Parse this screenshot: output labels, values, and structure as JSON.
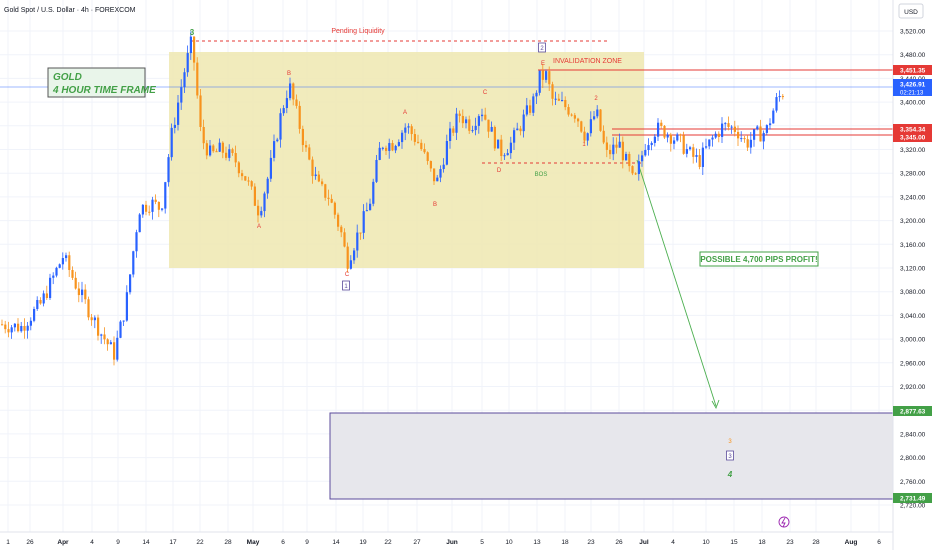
{
  "header": {
    "symbol_title": "Gold Spot / U.S. Dollar · 4h · FOREXCOM"
  },
  "axis": {
    "currency": "USD"
  },
  "colors": {
    "up": "#2962ff",
    "down": "#f7931e",
    "zone": "#efe8b0",
    "target_zone": "#e7e7ec",
    "target_border": "#5b4b9b",
    "red": "#e53935",
    "green": "#43a047"
  },
  "chart_data": {
    "type": "candlestick",
    "title": "Gold Spot / U.S. Dollar · 4h · FOREXCOM",
    "ylim": [
      2700,
      3545
    ],
    "y_ticks": [
      3520,
      3480,
      3440,
      3400,
      3360,
      3320,
      3280,
      3240,
      3200,
      3160,
      3120,
      3080,
      3040,
      3000,
      2960,
      2920,
      2880,
      2840,
      2800,
      2760,
      2720
    ],
    "x_ticks": [
      "1",
      "26",
      "Apr",
      "4",
      "9",
      "14",
      "17",
      "22",
      "28",
      "May",
      "6",
      "9",
      "14",
      "19",
      "22",
      "27",
      "Jun",
      "5",
      "10",
      "13",
      "18",
      "23",
      "26",
      "Jul",
      "4",
      "10",
      "15",
      "18",
      "23",
      "28",
      "Aug",
      "6"
    ],
    "price_labels": [
      {
        "value": "3,451.35",
        "color": "#e53935"
      },
      {
        "value": "3,426.91",
        "color": "#2962ff",
        "sub": "02:21:13"
      },
      {
        "value": "3,354.34",
        "color": "#e53935"
      },
      {
        "value": "3,345.00",
        "color": "#e53935"
      },
      {
        "value": "2,877.63",
        "color": "#43a047"
      },
      {
        "value": "2,731.49",
        "color": "#43a047"
      }
    ],
    "price_path": [
      [
        "1",
        3020
      ],
      [
        "26",
        3030
      ],
      [
        "Apr",
        3140
      ],
      [
        "4",
        3050
      ],
      [
        "9",
        2985
      ],
      [
        "14",
        3230
      ],
      [
        "17",
        3330
      ],
      [
        "22",
        3500
      ],
      [
        "28",
        3310
      ],
      [
        "May",
        3210
      ],
      [
        "6",
        3430
      ],
      [
        "9",
        3300
      ],
      [
        "14",
        3125
      ],
      [
        "19",
        3230
      ],
      [
        "22",
        3340
      ],
      [
        "27",
        3280
      ],
      [
        "Jun",
        3370
      ],
      [
        "5",
        3390
      ],
      [
        "10",
        3315
      ],
      [
        "13",
        3440
      ],
      [
        "18",
        3390
      ],
      [
        "23",
        3300
      ],
      [
        "26",
        3270
      ],
      [
        "Jul",
        3350
      ],
      [
        "4",
        3340
      ],
      [
        "10",
        3330
      ],
      [
        "15",
        3350
      ],
      [
        "18",
        3330
      ],
      [
        "23",
        3426.91
      ]
    ],
    "annotations": {
      "box_label_1": "GOLD",
      "box_label_2": "4 HOUR TIME FRAME",
      "pending_liquidity": "Pending Liquidity",
      "invalidation_zone": "INVALIDATION ZONE",
      "profit_label": "POSSIBLE 4,700 PIPS PROFIT!",
      "bos": "BOS",
      "wave_3_top": "3",
      "wave_boxed_2": "2",
      "wave_boxed_1": "1",
      "wave_boxed_3": "3",
      "wave_target_4": "4",
      "wave_target_small": "3",
      "pts": [
        "A",
        "B",
        "C",
        "A",
        "B",
        "C",
        "D",
        "E",
        "2",
        "1"
      ]
    }
  }
}
